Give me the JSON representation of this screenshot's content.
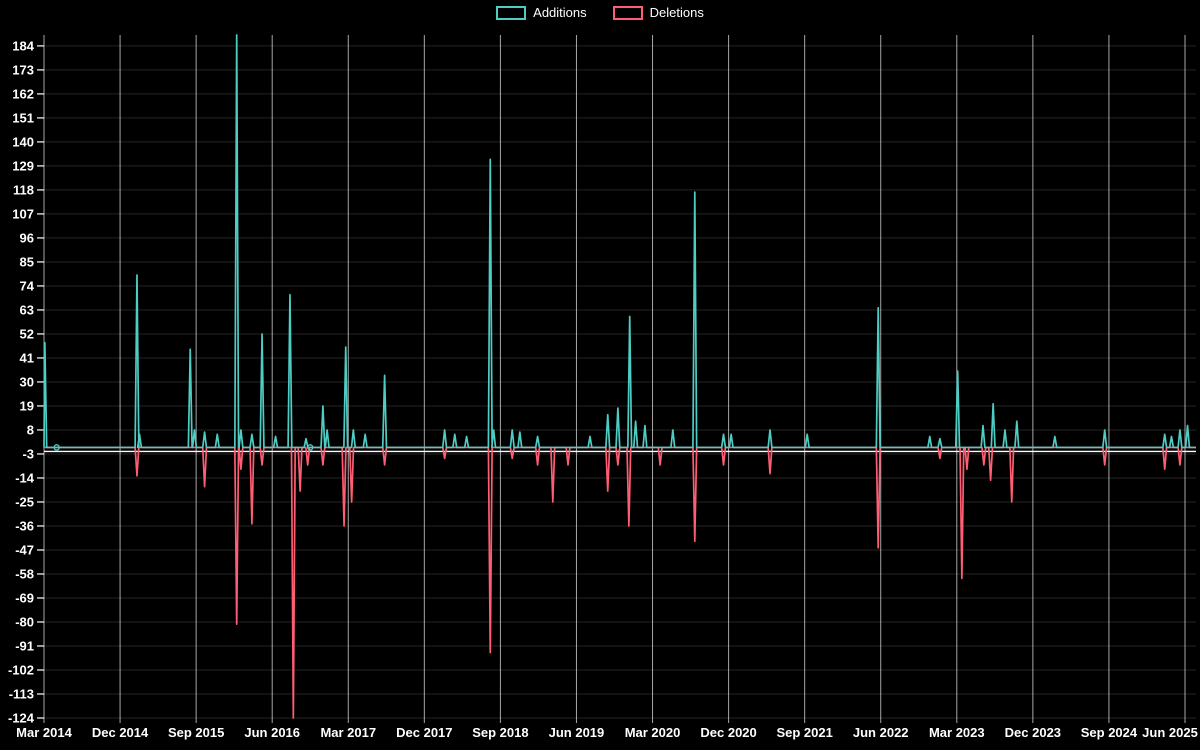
{
  "page": {
    "background": "#000000",
    "text_color": "#ffffff"
  },
  "legend": {
    "items": [
      {
        "label": "Additions",
        "color": "#4ecdc4"
      },
      {
        "label": "Deletions",
        "color": "#ff5d73"
      }
    ]
  },
  "chart_data": {
    "type": "line",
    "title": "",
    "legend_position": "top-center",
    "grid": {
      "vertical": true,
      "horizontal": true
    },
    "x_axis": {
      "tick_labels": [
        "Mar 2014",
        "Dec 2014",
        "Sep 2015",
        "Jun 2016",
        "Mar 2017",
        "Dec 2017",
        "Sep 2018",
        "Jun 2019",
        "Mar 2020",
        "Dec 2020",
        "Sep 2021",
        "Jun 2022",
        "Mar 2023",
        "Dec 2023",
        "Sep 2024",
        "Jun 2025"
      ],
      "tick_interval_months": 9,
      "range_months": [
        0,
        136.3
      ]
    },
    "y_axis": {
      "ticks": [
        184,
        173,
        162,
        151,
        140,
        129,
        118,
        107,
        96,
        85,
        74,
        63,
        52,
        41,
        30,
        19,
        8,
        -3,
        -14,
        -25,
        -36,
        -47,
        -58,
        -69,
        -80,
        -91,
        -102,
        -113,
        -124
      ],
      "ylim": [
        -124,
        189
      ]
    },
    "series": [
      {
        "name": "Additions",
        "color": "#4ecdc4",
        "baseline": 0,
        "point_markers_months": [
          1.5,
          31.5
        ],
        "spikes_month_value": [
          [
            0.1,
            48
          ],
          [
            11.0,
            79
          ],
          [
            11.3,
            6
          ],
          [
            17.3,
            45
          ],
          [
            17.8,
            8
          ],
          [
            19.0,
            7
          ],
          [
            20.5,
            6
          ],
          [
            22.8,
            189
          ],
          [
            23.3,
            8
          ],
          [
            24.6,
            6
          ],
          [
            25.8,
            52
          ],
          [
            27.4,
            5
          ],
          [
            29.1,
            70
          ],
          [
            31.0,
            4
          ],
          [
            33.0,
            19
          ],
          [
            33.5,
            8
          ],
          [
            35.7,
            46
          ],
          [
            36.6,
            8
          ],
          [
            38.0,
            6
          ],
          [
            40.3,
            33
          ],
          [
            47.4,
            8
          ],
          [
            48.6,
            6
          ],
          [
            50.0,
            5
          ],
          [
            52.8,
            132
          ],
          [
            53.2,
            8
          ],
          [
            55.4,
            8
          ],
          [
            56.3,
            7
          ],
          [
            58.4,
            5
          ],
          [
            64.6,
            5
          ],
          [
            66.7,
            15
          ],
          [
            67.9,
            18
          ],
          [
            69.3,
            60
          ],
          [
            70.0,
            12
          ],
          [
            71.1,
            10
          ],
          [
            74.4,
            8
          ],
          [
            77.0,
            117
          ],
          [
            80.4,
            6
          ],
          [
            81.3,
            6
          ],
          [
            85.9,
            8
          ],
          [
            90.3,
            6
          ],
          [
            98.7,
            64
          ],
          [
            104.8,
            5
          ],
          [
            106.0,
            4
          ],
          [
            108.1,
            35
          ],
          [
            111.1,
            10
          ],
          [
            112.3,
            20
          ],
          [
            113.7,
            8
          ],
          [
            115.1,
            12
          ],
          [
            119.6,
            5
          ],
          [
            125.5,
            8
          ],
          [
            132.6,
            6
          ],
          [
            133.4,
            5
          ],
          [
            134.4,
            8
          ],
          [
            135.3,
            10
          ]
        ]
      },
      {
        "name": "Deletions",
        "color": "#ff5d73",
        "baseline": 0,
        "point_markers_months": [],
        "spikes_month_value": [
          [
            11.0,
            -13
          ],
          [
            19.0,
            -18
          ],
          [
            22.8,
            -81
          ],
          [
            23.3,
            -10
          ],
          [
            24.6,
            -35
          ],
          [
            25.8,
            -8
          ],
          [
            29.5,
            -124
          ],
          [
            30.3,
            -20
          ],
          [
            31.2,
            -8
          ],
          [
            33.0,
            -8
          ],
          [
            35.5,
            -36
          ],
          [
            36.4,
            -25
          ],
          [
            40.3,
            -8
          ],
          [
            47.4,
            -5
          ],
          [
            52.8,
            -94
          ],
          [
            55.4,
            -5
          ],
          [
            58.4,
            -8
          ],
          [
            60.2,
            -25
          ],
          [
            62.0,
            -8
          ],
          [
            66.7,
            -20
          ],
          [
            67.9,
            -8
          ],
          [
            69.2,
            -36
          ],
          [
            72.9,
            -8
          ],
          [
            77.0,
            -43
          ],
          [
            80.4,
            -8
          ],
          [
            85.9,
            -12
          ],
          [
            98.7,
            -46
          ],
          [
            106.0,
            -5
          ],
          [
            108.6,
            -60
          ],
          [
            109.2,
            -10
          ],
          [
            111.2,
            -8
          ],
          [
            112.0,
            -15
          ],
          [
            114.5,
            -25
          ],
          [
            125.5,
            -8
          ],
          [
            132.6,
            -10
          ],
          [
            134.4,
            -8
          ]
        ]
      }
    ]
  }
}
